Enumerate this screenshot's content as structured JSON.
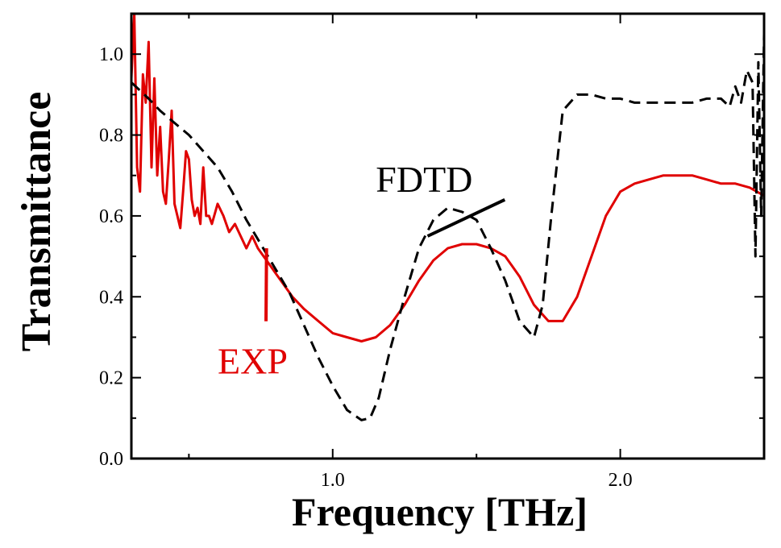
{
  "chart_data": {
    "type": "line",
    "xlabel": "Frequency [THz]",
    "ylabel": "Transmittance",
    "xlim": [
      0.3,
      2.5
    ],
    "ylim": [
      0.0,
      1.1
    ],
    "x_ticks": [
      {
        "value": 1.0,
        "label": "1.0"
      },
      {
        "value": 2.0,
        "label": "2.0"
      }
    ],
    "x_minor_ticks": [
      0.5,
      1.5,
      2.5
    ],
    "y_ticks": [
      {
        "value": 0.0,
        "label": "0.0"
      },
      {
        "value": 0.2,
        "label": "0.2"
      },
      {
        "value": 0.4,
        "label": "0.4"
      },
      {
        "value": 0.6,
        "label": "0.6"
      },
      {
        "value": 0.8,
        "label": "0.8"
      },
      {
        "value": 1.0,
        "label": "1.0"
      }
    ],
    "y_minor_ticks": [
      0.1,
      0.3,
      0.5,
      0.7,
      0.9
    ],
    "grid": false,
    "series": [
      {
        "name": "EXP",
        "color": "#e00000",
        "dash": "solid",
        "x": [
          0.3,
          0.31,
          0.32,
          0.33,
          0.34,
          0.35,
          0.36,
          0.37,
          0.38,
          0.39,
          0.4,
          0.41,
          0.42,
          0.43,
          0.44,
          0.45,
          0.46,
          0.47,
          0.48,
          0.49,
          0.5,
          0.51,
          0.52,
          0.53,
          0.54,
          0.55,
          0.56,
          0.57,
          0.58,
          0.6,
          0.62,
          0.64,
          0.66,
          0.68,
          0.7,
          0.72,
          0.74,
          0.76,
          0.78,
          0.8,
          0.83,
          0.86,
          0.9,
          0.95,
          1.0,
          1.05,
          1.1,
          1.15,
          1.2,
          1.25,
          1.3,
          1.35,
          1.4,
          1.45,
          1.5,
          1.55,
          1.6,
          1.65,
          1.7,
          1.75,
          1.8,
          1.85,
          1.9,
          1.95,
          2.0,
          2.05,
          2.1,
          2.15,
          2.2,
          2.25,
          2.3,
          2.35,
          2.4,
          2.45,
          2.5
        ],
        "y": [
          0.94,
          1.1,
          0.72,
          0.66,
          0.95,
          0.88,
          1.03,
          0.72,
          0.94,
          0.7,
          0.82,
          0.66,
          0.63,
          0.74,
          0.86,
          0.63,
          0.6,
          0.57,
          0.66,
          0.76,
          0.74,
          0.64,
          0.6,
          0.62,
          0.58,
          0.72,
          0.6,
          0.6,
          0.58,
          0.63,
          0.6,
          0.56,
          0.58,
          0.55,
          0.52,
          0.55,
          0.52,
          0.5,
          0.48,
          0.46,
          0.43,
          0.4,
          0.37,
          0.34,
          0.31,
          0.3,
          0.29,
          0.3,
          0.33,
          0.38,
          0.44,
          0.49,
          0.52,
          0.53,
          0.53,
          0.52,
          0.5,
          0.45,
          0.38,
          0.34,
          0.34,
          0.4,
          0.5,
          0.6,
          0.66,
          0.68,
          0.69,
          0.7,
          0.7,
          0.7,
          0.69,
          0.68,
          0.68,
          0.67,
          0.65
        ]
      },
      {
        "name": "FDTD",
        "color": "#000000",
        "dash": "dashed",
        "x": [
          0.3,
          0.33,
          0.36,
          0.4,
          0.45,
          0.5,
          0.55,
          0.6,
          0.65,
          0.7,
          0.75,
          0.8,
          0.85,
          0.9,
          0.95,
          1.0,
          1.05,
          1.1,
          1.13,
          1.16,
          1.2,
          1.25,
          1.3,
          1.35,
          1.4,
          1.45,
          1.5,
          1.55,
          1.6,
          1.65,
          1.7,
          1.73,
          1.76,
          1.8,
          1.85,
          1.9,
          1.95,
          2.0,
          2.05,
          2.1,
          2.15,
          2.2,
          2.25,
          2.3,
          2.35,
          2.38,
          2.4,
          2.42,
          2.44,
          2.46,
          2.47,
          2.48,
          2.49,
          2.5
        ],
        "y": [
          0.93,
          0.91,
          0.89,
          0.86,
          0.83,
          0.8,
          0.76,
          0.72,
          0.66,
          0.59,
          0.53,
          0.47,
          0.41,
          0.33,
          0.25,
          0.18,
          0.12,
          0.095,
          0.1,
          0.15,
          0.27,
          0.4,
          0.52,
          0.59,
          0.62,
          0.61,
          0.59,
          0.52,
          0.44,
          0.34,
          0.3,
          0.38,
          0.6,
          0.86,
          0.9,
          0.9,
          0.89,
          0.89,
          0.88,
          0.88,
          0.88,
          0.88,
          0.88,
          0.89,
          0.89,
          0.87,
          0.92,
          0.88,
          0.96,
          0.93,
          0.5,
          0.98,
          0.6,
          1.05
        ]
      }
    ],
    "annotations": [
      {
        "text": "FDTD",
        "color": "#000000",
        "point_x": 1.33,
        "point_y": 0.55,
        "text_x": 1.15,
        "text_y": 0.66
      },
      {
        "text": "EXP",
        "color": "#e00000",
        "point_x": 0.77,
        "point_y": 0.52,
        "text_x": 0.6,
        "text_y": 0.21
      }
    ]
  }
}
